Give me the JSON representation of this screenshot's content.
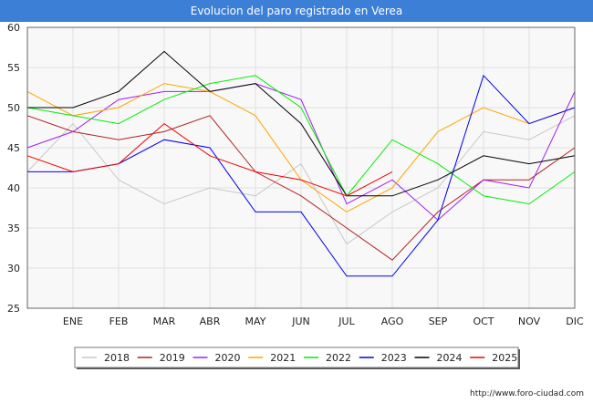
{
  "header": {
    "title": "Evolucion del paro registrado en Verea"
  },
  "footer": {
    "url": "http://www.foro-ciudad.com"
  },
  "chart_data": {
    "type": "line",
    "title": "Evolucion del paro registrado en Verea",
    "xlabel": "",
    "ylabel": "",
    "categories": [
      "",
      "ENE",
      "FEB",
      "MAR",
      "ABR",
      "MAY",
      "JUN",
      "JUL",
      "AGO",
      "SEP",
      "OCT",
      "NOV",
      "DIC"
    ],
    "yticks": [
      25,
      30,
      35,
      40,
      45,
      50,
      55,
      60
    ],
    "ylim": [
      25,
      60
    ],
    "grid": true,
    "legend_position": "bottom",
    "series": [
      {
        "name": "2018",
        "color": "#c8c8c8",
        "values": [
          42,
          48,
          41,
          38,
          40,
          39,
          43,
          33,
          37,
          40,
          47,
          46,
          49
        ]
      },
      {
        "name": "2019",
        "color": "#b22222",
        "values": [
          49,
          47,
          46,
          47,
          49,
          42,
          39,
          35,
          31,
          37,
          41,
          41,
          45
        ]
      },
      {
        "name": "2020",
        "color": "#a020f0",
        "values": [
          45,
          47,
          51,
          52,
          52,
          53,
          51,
          38,
          41,
          36,
          41,
          40,
          52
        ]
      },
      {
        "name": "2021",
        "color": "#ffa500",
        "values": [
          52,
          49,
          50,
          53,
          52,
          49,
          41,
          37,
          40,
          47,
          50,
          48,
          50
        ]
      },
      {
        "name": "2022",
        "color": "#00ee00",
        "values": [
          50,
          49,
          48,
          51,
          53,
          54,
          50,
          39,
          46,
          43,
          39,
          38,
          42
        ]
      },
      {
        "name": "2023",
        "color": "#0000ee",
        "values": [
          42,
          42,
          43,
          46,
          45,
          37,
          37,
          29,
          29,
          36,
          54,
          48,
          50
        ]
      },
      {
        "name": "2024",
        "color": "#000000",
        "values": [
          50,
          50,
          52,
          57,
          52,
          53,
          48,
          39,
          39,
          41,
          44,
          43,
          44
        ]
      },
      {
        "name": "2025",
        "color": "#ee0000",
        "values": [
          44,
          42,
          43,
          48,
          44,
          42,
          41,
          39,
          42,
          null,
          null,
          null,
          null
        ]
      }
    ]
  }
}
